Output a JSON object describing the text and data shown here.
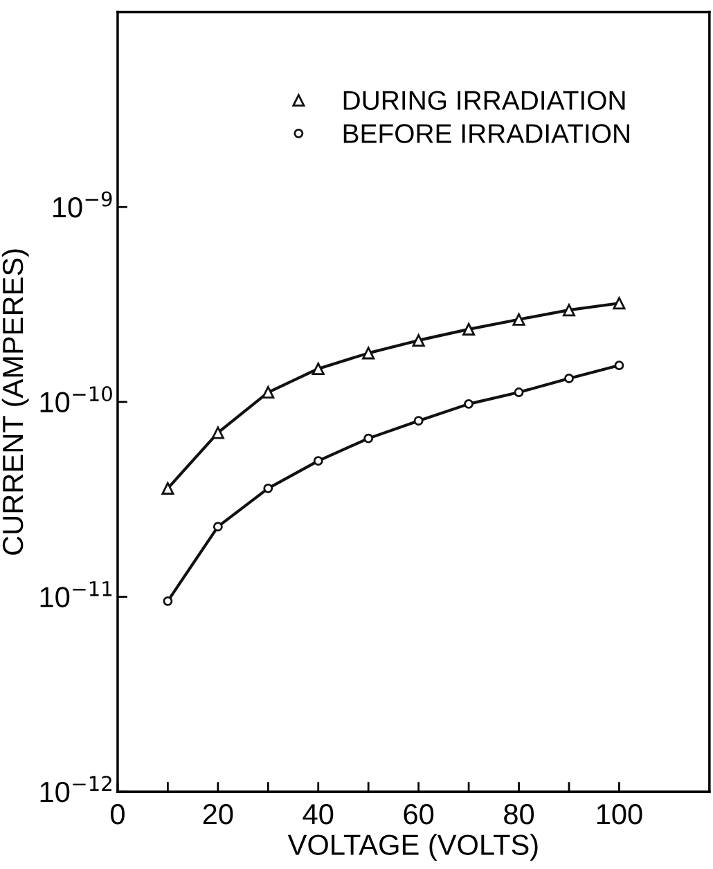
{
  "chart_data": {
    "type": "line",
    "xlabel": "VOLTAGE (VOLTS)",
    "ylabel": "CURRENT (AMPERES)",
    "log": "y",
    "xlim": [
      0,
      118
    ],
    "ylim": [
      1e-12,
      1e-08
    ],
    "xticks": [
      0,
      {
        "value": 10,
        "label": null
      },
      20,
      {
        "value": 30,
        "label": null
      },
      40,
      {
        "value": 50,
        "label": null
      },
      60,
      {
        "value": 70,
        "label": null
      },
      80,
      {
        "value": 90,
        "label": null
      },
      100
    ],
    "yticks": [
      {
        "value": 1e-12,
        "label": "10$^{−12}$"
      },
      {
        "value": 1e-11,
        "label": "10$^{−11}$"
      },
      {
        "value": 1e-10,
        "label": "10$^{−10}$"
      },
      {
        "value": 1e-09,
        "label": "10$^{−9}$"
      }
    ],
    "x": [
      10,
      20,
      30,
      40,
      50,
      60,
      70,
      80,
      90,
      100
    ],
    "grid": false,
    "legend": "top right",
    "line_style": "solid",
    "series": [
      {
        "name": "DURING IRRADIATION",
        "color": "#111111",
        "marker": "triangle",
        "values": [
          3.6e-11,
          6.95e-11,
          1.12e-10,
          1.48e-10,
          1.78e-10,
          2.07e-10,
          2.36e-10,
          2.65e-10,
          2.96e-10,
          3.21e-10
        ]
      },
      {
        "name": "BEFORE IRRADIATION",
        "color": "#111111",
        "marker": "circle",
        "values": [
          9.5e-12,
          2.29e-11,
          3.6e-11,
          4.98e-11,
          6.5e-11,
          8e-11,
          9.76e-11,
          1.12e-10,
          1.32e-10,
          1.54e-10
        ]
      }
    ]
  }
}
